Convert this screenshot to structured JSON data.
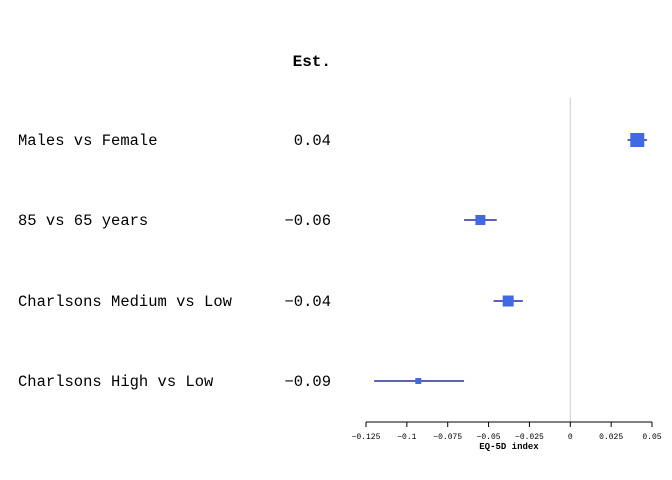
{
  "chart_data": {
    "type": "forest",
    "est_header": "Est.",
    "xlabel": "EQ-5D index",
    "xlim": [
      -0.125,
      0.05
    ],
    "xticks": [
      {
        "value": -0.125,
        "label": "−0.125"
      },
      {
        "value": -0.1,
        "label": "−0.1"
      },
      {
        "value": -0.075,
        "label": "−0.075"
      },
      {
        "value": -0.05,
        "label": "−0.05"
      },
      {
        "value": -0.025,
        "label": "−0.025"
      },
      {
        "value": 0,
        "label": "0"
      },
      {
        "value": 0.025,
        "label": "0.025"
      },
      {
        "value": 0.05,
        "label": "0.05"
      }
    ],
    "reference_line": 0,
    "rows": [
      {
        "label": "Males vs Female",
        "est_text": "0.04",
        "estimate": 0.041,
        "lower": 0.035,
        "upper": 0.047,
        "box_size": 14
      },
      {
        "label": "85 vs 65 years",
        "est_text": "−0.06",
        "estimate": -0.055,
        "lower": -0.065,
        "upper": -0.045,
        "box_size": 10
      },
      {
        "label": "Charlsons Medium vs Low",
        "est_text": "−0.04",
        "estimate": -0.038,
        "lower": -0.047,
        "upper": -0.029,
        "box_size": 11
      },
      {
        "label": "Charlsons High vs Low",
        "est_text": "−0.09",
        "estimate": -0.093,
        "lower": -0.12,
        "upper": -0.065,
        "box_size": 6
      }
    ],
    "colors": {
      "box": "#4169E1",
      "ci_line": "#00008B",
      "reference_line": "#cccccc",
      "axis": "#000000"
    }
  }
}
